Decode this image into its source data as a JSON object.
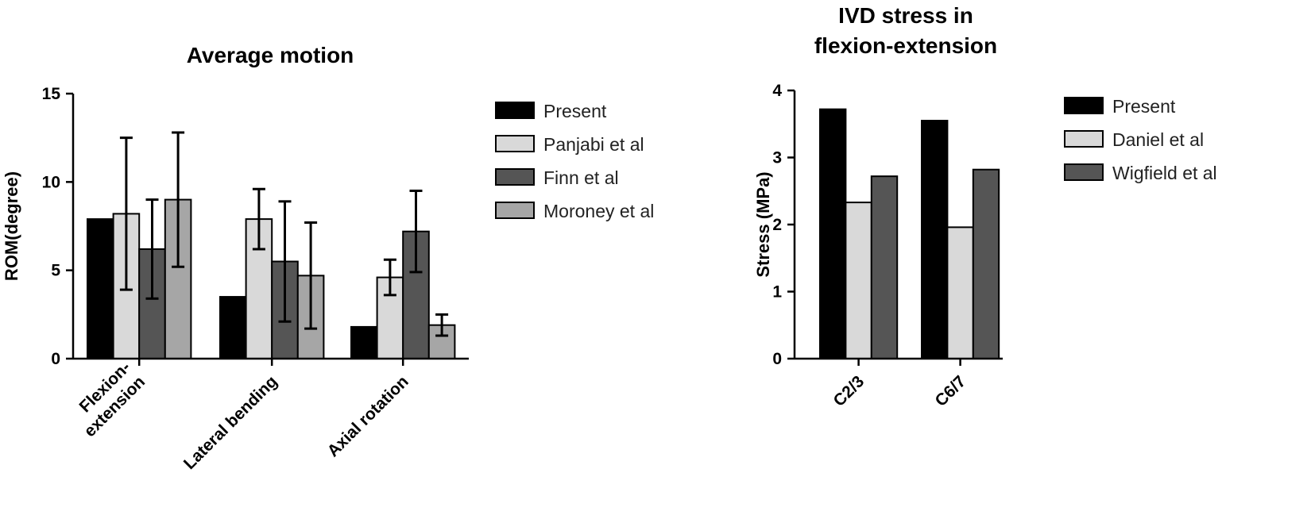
{
  "chart_data": [
    {
      "type": "bar",
      "title": "Average motion",
      "xlabel": "",
      "ylabel": "ROM(degree)",
      "ylim": [
        0,
        15
      ],
      "yticks": [
        0,
        5,
        10,
        15
      ],
      "categories": [
        "Flexion-\nextension",
        "Lateral bending",
        "Axial rotation"
      ],
      "error_bars": true,
      "legend_position": "right",
      "series": [
        {
          "name": "Present",
          "color": "#000000",
          "values": [
            7.9,
            3.5,
            1.8
          ],
          "errors": [
            null,
            null,
            null
          ]
        },
        {
          "name": "Panjabi et al",
          "color": "#d9d9d9",
          "values": [
            8.2,
            7.9,
            4.6
          ],
          "errors": [
            4.3,
            1.7,
            1.0
          ]
        },
        {
          "name": "Finn et al",
          "color": "#555555",
          "values": [
            6.2,
            5.5,
            7.2
          ],
          "errors": [
            2.8,
            3.4,
            2.3
          ]
        },
        {
          "name": "Moroney et al",
          "color": "#a6a6a6",
          "values": [
            9.0,
            4.7,
            1.9
          ],
          "errors": [
            3.8,
            3.0,
            0.6
          ]
        }
      ]
    },
    {
      "type": "bar",
      "title": "IVD stress in\nflexion-extension",
      "xlabel": "",
      "ylabel": "Stress (MPa)",
      "ylim": [
        0,
        4
      ],
      "yticks": [
        0,
        1,
        2,
        3,
        4
      ],
      "categories": [
        "C2/3",
        "C6/7"
      ],
      "error_bars": false,
      "legend_position": "right",
      "series": [
        {
          "name": "Present",
          "color": "#000000",
          "values": [
            3.72,
            3.55
          ]
        },
        {
          "name": "Daniel et al",
          "color": "#d9d9d9",
          "values": [
            2.33,
            1.96
          ]
        },
        {
          "name": "Wigfield et al",
          "color": "#555555",
          "values": [
            2.72,
            2.82
          ]
        }
      ]
    }
  ]
}
